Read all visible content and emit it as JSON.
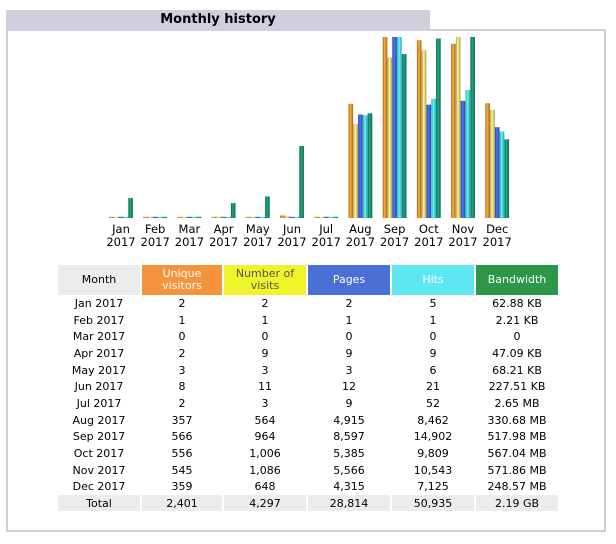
{
  "title": "Monthly history",
  "chart_data": {
    "type": "bar",
    "categories": [
      "Jan",
      "Feb",
      "Mar",
      "Apr",
      "May",
      "Jun",
      "Jul",
      "Aug",
      "Sep",
      "Oct",
      "Nov",
      "Dec"
    ],
    "year": "2017",
    "series": [
      {
        "name": "Unique visitors",
        "color": "#e08a28",
        "values": [
          2,
          1,
          0,
          2,
          3,
          8,
          2,
          357,
          566,
          556,
          545,
          359
        ]
      },
      {
        "name": "Number of visits",
        "color": "#e8d070",
        "values": [
          2,
          1,
          0,
          9,
          3,
          11,
          3,
          564,
          964,
          1006,
          1086,
          648
        ]
      },
      {
        "name": "Pages",
        "color": "#3b5fd0",
        "values": [
          2,
          1,
          0,
          9,
          3,
          12,
          9,
          4915,
          8597,
          5385,
          5566,
          4315
        ]
      },
      {
        "name": "Hits",
        "color": "#45dde8",
        "values": [
          5,
          1,
          0,
          9,
          6,
          21,
          52,
          8462,
          14902,
          9809,
          10543,
          7125
        ]
      },
      {
        "name": "Bandwidth",
        "color": "#17886a",
        "values": [
          62.88,
          2.21,
          0,
          47.09,
          68.21,
          227.51,
          2.65,
          330.68,
          517.98,
          567.04,
          571.86,
          248.57
        ]
      }
    ]
  },
  "table": {
    "headers": [
      "Month",
      "Unique visitors",
      "Number of visits",
      "Pages",
      "Hits",
      "Bandwidth"
    ],
    "rows": [
      [
        "Jan 2017",
        "2",
        "2",
        "2",
        "5",
        "62.88 KB"
      ],
      [
        "Feb 2017",
        "1",
        "1",
        "1",
        "1",
        "2.21 KB"
      ],
      [
        "Mar 2017",
        "0",
        "0",
        "0",
        "0",
        "0"
      ],
      [
        "Apr 2017",
        "2",
        "9",
        "9",
        "9",
        "47.09 KB"
      ],
      [
        "May 2017",
        "3",
        "3",
        "3",
        "6",
        "68.21 KB"
      ],
      [
        "Jun 2017",
        "8",
        "11",
        "12",
        "21",
        "227.51 KB"
      ],
      [
        "Jul 2017",
        "2",
        "3",
        "9",
        "52",
        "2.65 MB"
      ],
      [
        "Aug 2017",
        "357",
        "564",
        "4,915",
        "8,462",
        "330.68 MB"
      ],
      [
        "Sep 2017",
        "566",
        "964",
        "8,597",
        "14,902",
        "517.98 MB"
      ],
      [
        "Oct 2017",
        "556",
        "1,006",
        "5,385",
        "9,809",
        "567.04 MB"
      ],
      [
        "Nov 2017",
        "545",
        "1,086",
        "5,566",
        "10,543",
        "571.86 MB"
      ],
      [
        "Dec 2017",
        "359",
        "648",
        "4,315",
        "7,125",
        "248.57 MB"
      ]
    ],
    "total": [
      "Total",
      "2,401",
      "4,297",
      "28,814",
      "50,935",
      "2.19 GB"
    ]
  }
}
